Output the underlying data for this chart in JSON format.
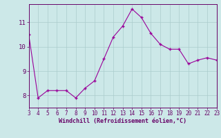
{
  "x": [
    3,
    4,
    5,
    6,
    7,
    8,
    9,
    10,
    11,
    12,
    13,
    14,
    15,
    16,
    17,
    18,
    19,
    20,
    21,
    22,
    23
  ],
  "y": [
    10.5,
    7.9,
    8.2,
    8.2,
    8.2,
    7.9,
    8.3,
    8.6,
    9.5,
    10.4,
    10.85,
    11.55,
    11.2,
    10.55,
    10.1,
    9.9,
    9.9,
    9.3,
    9.45,
    9.55,
    9.45
  ],
  "line_color": "#990099",
  "marker": "+",
  "marker_size": 3,
  "bg_color": "#cce8e8",
  "grid_color": "#aacccc",
  "xlabel": "Windchill (Refroidissement éolien,°C)",
  "xlabel_color": "#660066",
  "tick_color": "#660066",
  "xlim": [
    3,
    23
  ],
  "ylim": [
    7.5,
    11.75
  ],
  "yticks": [
    8,
    9,
    10,
    11
  ],
  "xticks": [
    3,
    4,
    5,
    6,
    7,
    8,
    9,
    10,
    11,
    12,
    13,
    14,
    15,
    16,
    17,
    18,
    19,
    20,
    21,
    22,
    23
  ]
}
